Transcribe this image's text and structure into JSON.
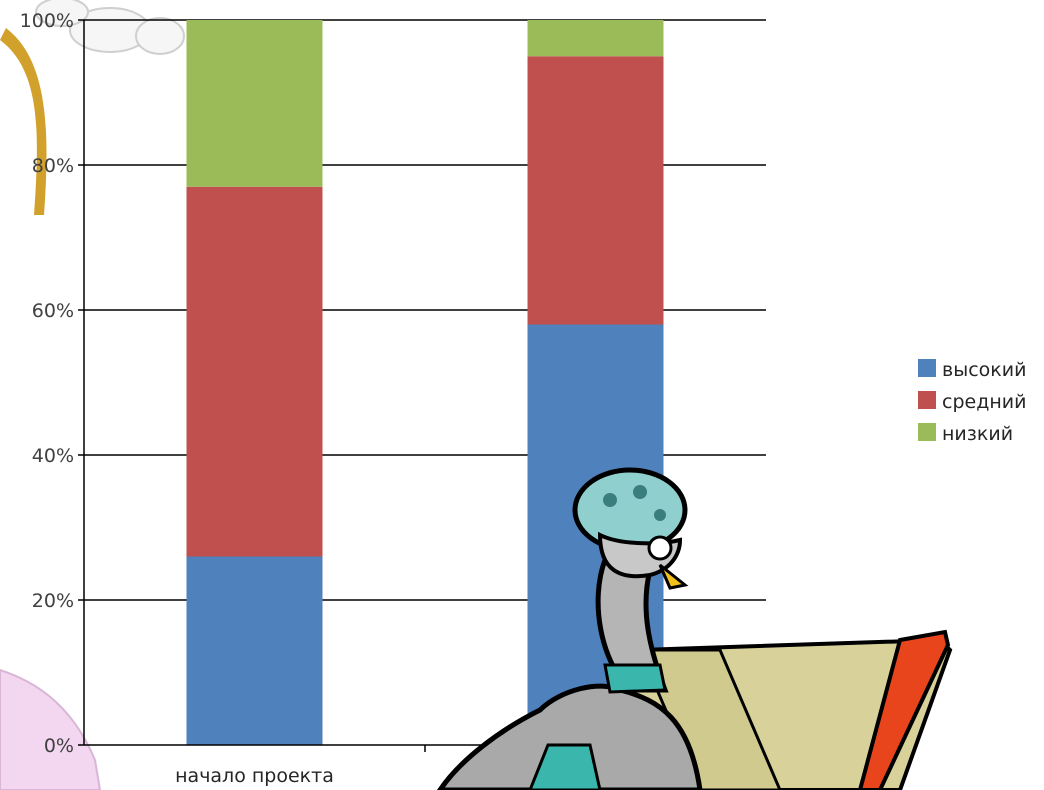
{
  "chart_data": {
    "type": "bar",
    "stacked": true,
    "categories": [
      "начало проекта",
      ""
    ],
    "series": [
      {
        "name": "высокий",
        "color": "#4f81bd",
        "values": [
          26,
          58
        ]
      },
      {
        "name": "средний",
        "color": "#c0504d",
        "values": [
          51,
          37
        ]
      },
      {
        "name": "низкий",
        "color": "#9bbb59",
        "values": [
          23,
          5
        ]
      }
    ],
    "yticks": [
      "0%",
      "20%",
      "40%",
      "60%",
      "80%",
      "100%"
    ],
    "ylim": [
      0,
      100
    ],
    "grid": true,
    "legend_position": "right"
  },
  "decorations": {
    "top_left": "cartoon-glove-and-cane",
    "bottom_left": "pink-cartoon-shape",
    "center_bottom": "cartoon-bird-reading-book"
  }
}
